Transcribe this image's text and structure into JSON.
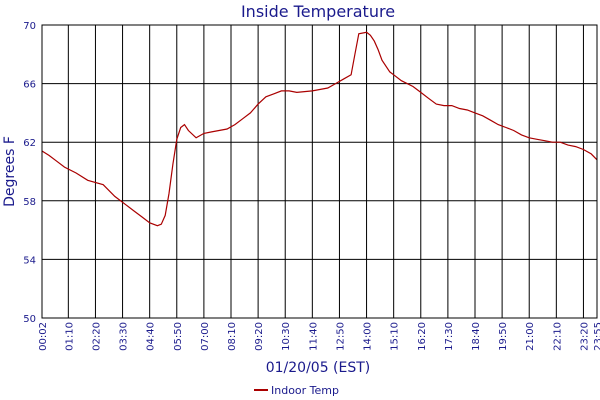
{
  "chart_data": {
    "type": "line",
    "title": "Inside Temperature",
    "xlabel": "01/20/05 (EST)",
    "ylabel": "Degrees F",
    "ylim": [
      50,
      70
    ],
    "yticks": [
      "50",
      "54",
      "58",
      "62",
      "66",
      "70"
    ],
    "xticks": [
      "00:02",
      "01:10",
      "02:20",
      "03:30",
      "04:40",
      "05:50",
      "07:00",
      "08:10",
      "09:20",
      "10:30",
      "11:40",
      "12:50",
      "14:00",
      "15:10",
      "16:20",
      "17:30",
      "18:40",
      "19:50",
      "21:00",
      "22:10",
      "23:20",
      "23:55"
    ],
    "grid": true,
    "legend": "bottom",
    "colors": {
      "line": "#aa0000",
      "grid": "#000000",
      "text": "#1a1a8c"
    },
    "series": [
      {
        "name": "Indoor Temp",
        "x": [
          "00:02",
          "00:20",
          "00:40",
          "01:00",
          "01:30",
          "02:00",
          "02:40",
          "03:10",
          "03:40",
          "04:00",
          "04:20",
          "04:40",
          "05:00",
          "05:10",
          "05:20",
          "05:30",
          "05:40",
          "05:50",
          "06:00",
          "06:10",
          "06:20",
          "06:40",
          "07:00",
          "07:20",
          "08:00",
          "08:20",
          "08:40",
          "09:00",
          "09:20",
          "09:40",
          "10:00",
          "10:20",
          "10:40",
          "11:00",
          "11:40",
          "12:20",
          "12:40",
          "13:00",
          "13:20",
          "13:30",
          "13:40",
          "14:00",
          "14:10",
          "14:20",
          "14:30",
          "14:40",
          "15:00",
          "15:10",
          "15:30",
          "16:00",
          "16:20",
          "16:40",
          "17:00",
          "17:20",
          "17:40",
          "18:00",
          "18:20",
          "18:40",
          "19:00",
          "19:20",
          "19:40",
          "20:00",
          "20:20",
          "20:40",
          "21:00",
          "21:20",
          "21:40",
          "22:00",
          "22:20",
          "22:40",
          "23:00",
          "23:20",
          "23:40",
          "23:55"
        ],
        "values": [
          61.4,
          61.1,
          60.7,
          60.3,
          59.9,
          59.4,
          59.1,
          58.3,
          57.7,
          57.3,
          56.9,
          56.5,
          56.3,
          56.4,
          57.0,
          58.5,
          60.5,
          62.2,
          63.0,
          63.2,
          62.8,
          62.3,
          62.6,
          62.7,
          62.9,
          63.2,
          63.6,
          64.0,
          64.6,
          65.1,
          65.3,
          65.5,
          65.5,
          65.4,
          65.5,
          65.7,
          66.0,
          66.3,
          66.6,
          68.0,
          69.4,
          69.5,
          69.3,
          68.9,
          68.3,
          67.6,
          66.8,
          66.6,
          66.2,
          65.8,
          65.4,
          65.0,
          64.6,
          64.5,
          64.5,
          64.3,
          64.2,
          64.0,
          63.8,
          63.5,
          63.2,
          63.0,
          62.8,
          62.5,
          62.3,
          62.2,
          62.1,
          62.0,
          62.0,
          61.8,
          61.7,
          61.5,
          61.2,
          60.8
        ]
      }
    ]
  }
}
